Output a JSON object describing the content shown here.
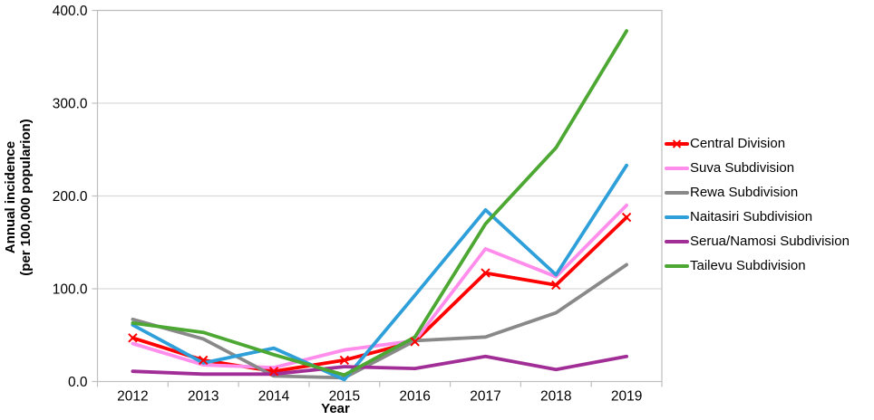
{
  "chart_data": {
    "type": "line",
    "title": "",
    "xlabel": "Year",
    "ylabel_line1": "Annual incidence",
    "ylabel_line2": "(per 100,000 popularion)",
    "categories": [
      "2012",
      "2013",
      "2014",
      "2015",
      "2016",
      "2017",
      "2018",
      "2019"
    ],
    "y_ticks": [
      "0.0",
      "100.0",
      "200.0",
      "300.0",
      "400.0"
    ],
    "ylim": [
      0,
      400
    ],
    "grid": "horizontal",
    "legend_position": "right",
    "series": [
      {
        "name": "Central Division",
        "color": "#ff0000",
        "marker": "x",
        "values": [
          47,
          23,
          11,
          23,
          43,
          117,
          104,
          177
        ]
      },
      {
        "name": "Suva Subdivision",
        "color": "#ff8deb",
        "marker": "none",
        "values": [
          41,
          18,
          15,
          34,
          44,
          143,
          113,
          190
        ]
      },
      {
        "name": "Rewa Subdivision",
        "color": "#898989",
        "marker": "none",
        "values": [
          67,
          46,
          6,
          4,
          44,
          48,
          74,
          126
        ]
      },
      {
        "name": "Naitasiri Subdivision",
        "color": "#2e9fd9",
        "marker": "none",
        "values": [
          61,
          20,
          36,
          2,
          93,
          185,
          115,
          233
        ]
      },
      {
        "name": "Serua/Namosi Subdivision",
        "color": "#a12e96",
        "marker": "none",
        "values": [
          11,
          8,
          8,
          16,
          14,
          27,
          13,
          27
        ]
      },
      {
        "name": "Tailevu Subdivision",
        "color": "#4ca733",
        "marker": "none",
        "values": [
          63,
          53,
          29,
          7,
          48,
          170,
          252,
          378
        ]
      }
    ]
  },
  "colors": {
    "background": "#ffffff",
    "gridline": "#d9d9d9",
    "axis": "#bfbfbf",
    "text": "#000000"
  }
}
